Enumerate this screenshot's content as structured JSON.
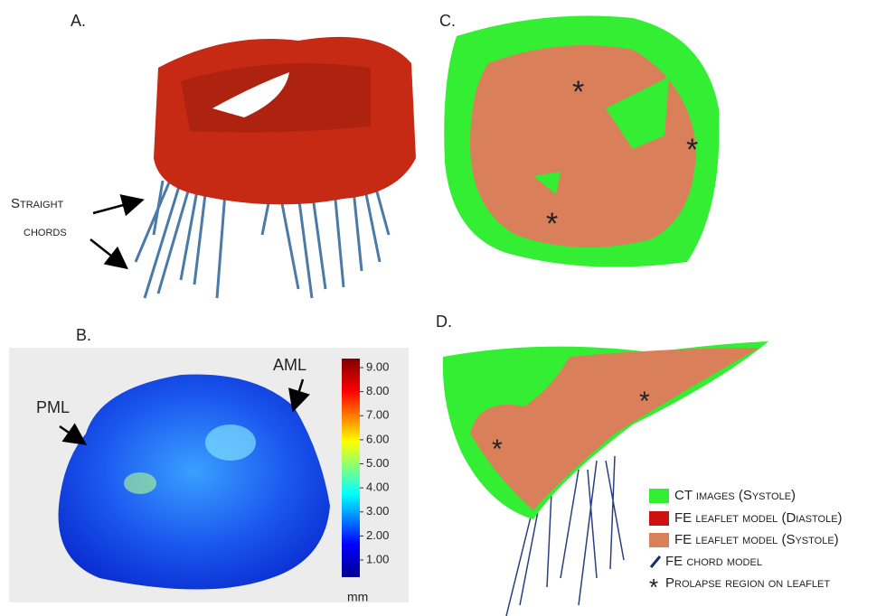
{
  "panels": {
    "a": {
      "label": "A.",
      "annotation": [
        "Straight",
        "chords"
      ]
    },
    "b": {
      "label": "B.",
      "pml": "PML",
      "aml": "AML",
      "colorbar": {
        "ticks": [
          "9.00",
          "8.00",
          "7.00",
          "6.00",
          "5.00",
          "4.00",
          "3.00",
          "2.00",
          "1.00"
        ],
        "unit": "mm"
      }
    },
    "c": {
      "label": "C."
    },
    "d": {
      "label": "D."
    }
  },
  "legend": [
    {
      "label": "CT images (Systole)",
      "color": "#33ee33"
    },
    {
      "label": "FE leaflet model (Diastole)",
      "color": "#cc1111"
    },
    {
      "label": "FE leaflet model (Systole)",
      "color": "#d9805a"
    },
    {
      "label": "FE chord model",
      "color": "#1a2e6e"
    },
    {
      "label": "Prolapse region on leaflet",
      "color": "#000000"
    }
  ]
}
